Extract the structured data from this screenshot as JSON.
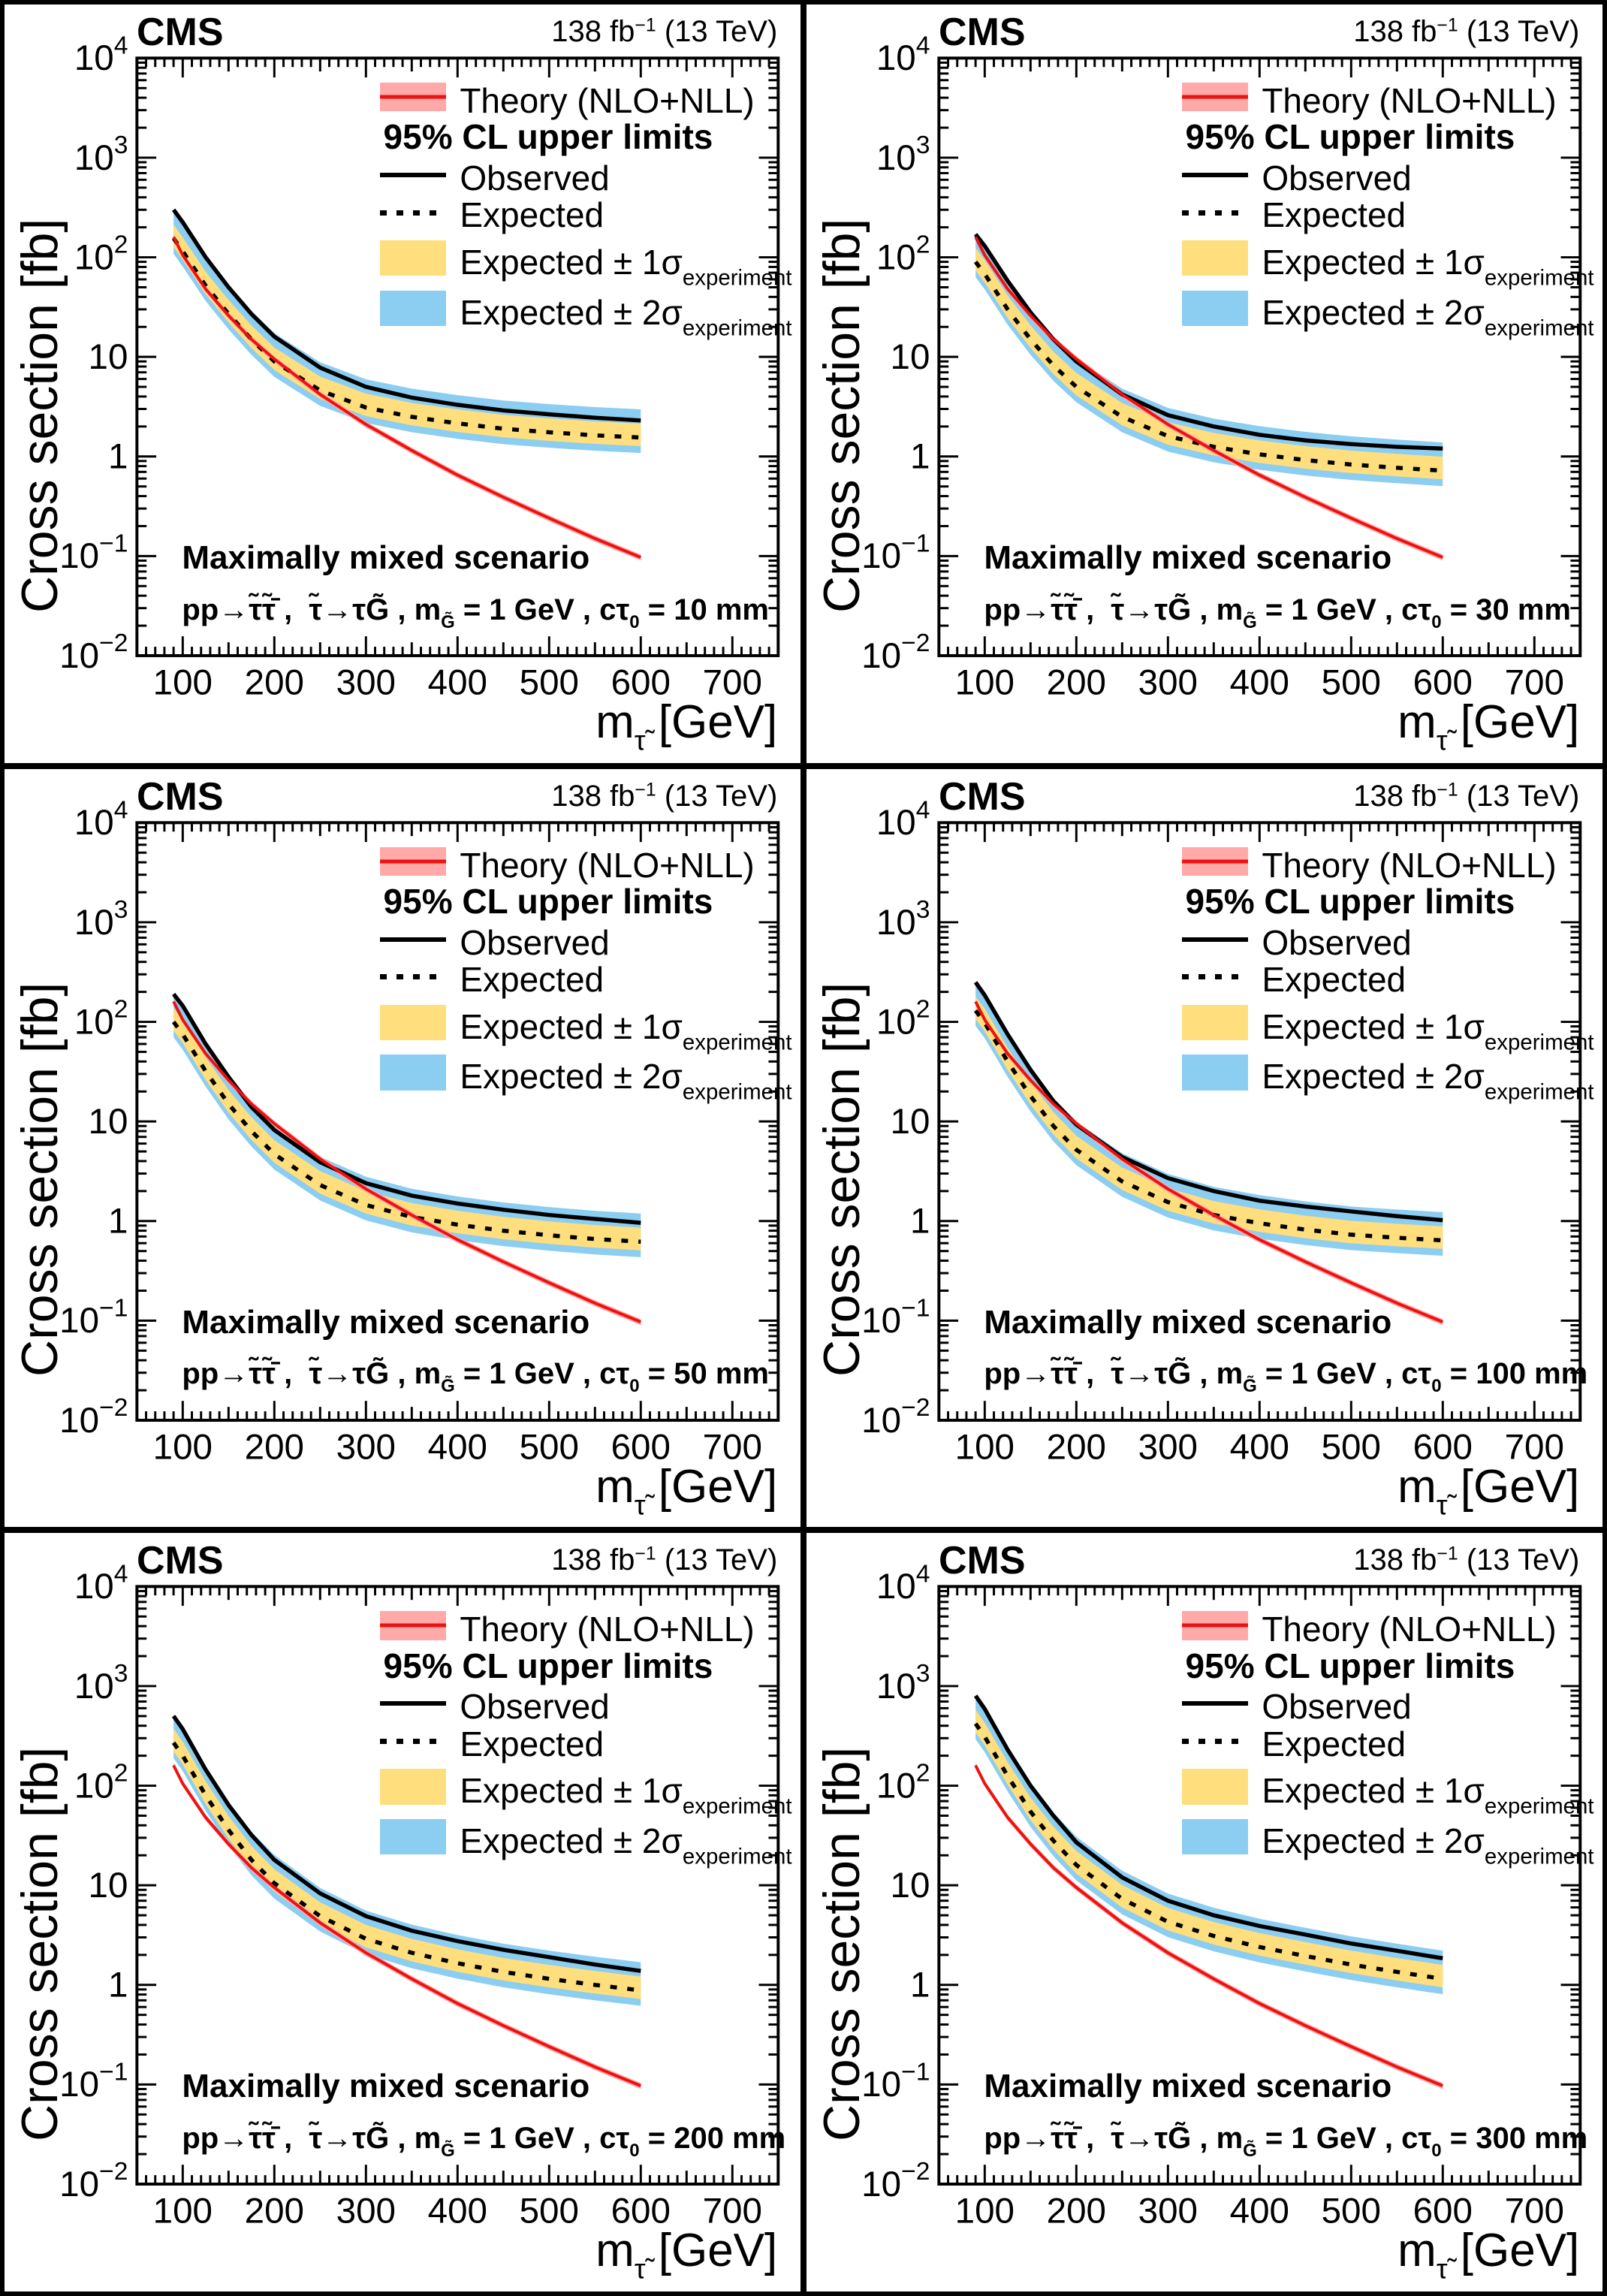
{
  "header": {
    "cms": "CMS",
    "lumi": "138 fb",
    "lumi_sup": "−1",
    "energy": " (13 TeV)"
  },
  "axes": {
    "y_title": "Cross section [fb]",
    "x_title_m": "m",
    "x_title_sub": "τ̃",
    "x_title_unit": " [GeV]",
    "x_ticks": [
      100,
      200,
      300,
      400,
      500,
      600,
      700
    ],
    "x_range": [
      50,
      750
    ],
    "y_decades": [
      -2,
      -1,
      0,
      1,
      2,
      3,
      4
    ]
  },
  "legend": {
    "theory": "Theory (NLO+NLL)",
    "header": "95% CL upper limits",
    "observed": "Observed",
    "expected": "Expected",
    "exp1": "Expected ± 1σ",
    "exp2": "Expected ± 2σ",
    "sigma_sub": "experiment"
  },
  "scenario": {
    "title": "Maximally mixed scenario",
    "prod": "pp→τ̃τ̃̄",
    "sep1": " ,  ",
    "decay": "τ̃→τG̃",
    "sep2": " , m",
    "mg_sub": "G̃",
    "mg_eq": " = 1 GeV , c",
    "ctau_c": "τ",
    "ctau_sub": "0",
    "eq": " = ",
    "unit": " mm"
  },
  "colors": {
    "band_2sigma": "#8CCDF2",
    "band_1sigma": "#FFDE7D",
    "theory_band": "#FFA9A9",
    "theory_line": "#EE1111",
    "black": "#000000"
  },
  "chart_data": [
    {
      "type": "line",
      "ctau_text": "10",
      "x_label": "m_τ̃ [GeV]",
      "y_label": "Cross section [fb]",
      "y_scale": "log",
      "x_range": [
        50,
        750
      ],
      "y_range": [
        0.01,
        10000
      ],
      "x": [
        90,
        100,
        125,
        150,
        175,
        200,
        250,
        300,
        350,
        400,
        450,
        500,
        550,
        600
      ],
      "series": [
        {
          "name": "theory_NLO_NLL",
          "values": [
            160,
            105,
            48,
            26,
            15,
            9.5,
            4.2,
            2.1,
            1.15,
            0.65,
            0.39,
            0.24,
            0.15,
            0.097
          ]
        },
        {
          "name": "observed",
          "values": [
            300,
            225,
            100,
            50,
            27,
            16,
            7.8,
            5.0,
            3.9,
            3.3,
            2.9,
            2.65,
            2.45,
            2.3
          ]
        },
        {
          "name": "expected",
          "values": [
            155,
            115,
            52,
            27,
            15,
            9.0,
            4.6,
            3.1,
            2.5,
            2.15,
            1.9,
            1.75,
            1.63,
            1.55
          ]
        }
      ],
      "band_factors": {
        "one_sigma": [
          0.82,
          1.38
        ],
        "two_sigma": [
          0.7,
          1.92
        ],
        "theory": [
          0.93,
          1.07
        ]
      }
    },
    {
      "type": "line",
      "ctau_text": "30",
      "x_label": "m_τ̃ [GeV]",
      "y_label": "Cross section [fb]",
      "y_scale": "log",
      "x_range": [
        50,
        750
      ],
      "y_range": [
        0.01,
        10000
      ],
      "x": [
        90,
        100,
        125,
        150,
        175,
        200,
        250,
        300,
        350,
        400,
        450,
        500,
        550,
        600
      ],
      "series": [
        {
          "name": "theory_NLO_NLL",
          "values": [
            160,
            105,
            48,
            26,
            15,
            9.5,
            4.2,
            2.1,
            1.15,
            0.65,
            0.39,
            0.24,
            0.15,
            0.097
          ]
        },
        {
          "name": "observed",
          "values": [
            170,
            130,
            58,
            28,
            15,
            9.0,
            4.2,
            2.6,
            2.0,
            1.65,
            1.45,
            1.33,
            1.25,
            1.2
          ]
        },
        {
          "name": "expected",
          "values": [
            90,
            68,
            30,
            15,
            8.2,
            5.0,
            2.5,
            1.6,
            1.25,
            1.05,
            0.92,
            0.83,
            0.77,
            0.72
          ]
        }
      ],
      "band_factors": {
        "one_sigma": [
          0.82,
          1.38
        ],
        "two_sigma": [
          0.7,
          1.92
        ],
        "theory": [
          0.93,
          1.07
        ]
      }
    },
    {
      "type": "line",
      "ctau_text": "50",
      "x_label": "m_τ̃ [GeV]",
      "y_label": "Cross section [fb]",
      "y_scale": "log",
      "x_range": [
        50,
        750
      ],
      "y_range": [
        0.01,
        10000
      ],
      "x": [
        90,
        100,
        125,
        150,
        175,
        200,
        250,
        300,
        350,
        400,
        450,
        500,
        550,
        600
      ],
      "series": [
        {
          "name": "theory_NLO_NLL",
          "values": [
            160,
            105,
            48,
            26,
            15,
            9.5,
            4.2,
            2.1,
            1.15,
            0.65,
            0.39,
            0.24,
            0.15,
            0.097
          ]
        },
        {
          "name": "observed",
          "values": [
            190,
            145,
            60,
            28,
            14,
            8.2,
            3.9,
            2.4,
            1.8,
            1.5,
            1.3,
            1.15,
            1.05,
            0.96
          ]
        },
        {
          "name": "expected",
          "values": [
            100,
            75,
            32,
            15,
            8.0,
            4.7,
            2.3,
            1.45,
            1.1,
            0.92,
            0.8,
            0.72,
            0.66,
            0.62
          ]
        }
      ],
      "band_factors": {
        "one_sigma": [
          0.82,
          1.38
        ],
        "two_sigma": [
          0.7,
          1.92
        ],
        "theory": [
          0.93,
          1.07
        ]
      }
    },
    {
      "type": "line",
      "ctau_text": "100",
      "x_label": "m_τ̃ [GeV]",
      "y_label": "Cross section [fb]",
      "y_scale": "log",
      "x_range": [
        50,
        750
      ],
      "y_range": [
        0.01,
        10000
      ],
      "x": [
        90,
        100,
        125,
        150,
        175,
        200,
        250,
        300,
        350,
        400,
        450,
        500,
        550,
        600
      ],
      "series": [
        {
          "name": "theory_NLO_NLL",
          "values": [
            160,
            105,
            48,
            26,
            15,
            9.5,
            4.2,
            2.1,
            1.15,
            0.65,
            0.39,
            0.24,
            0.15,
            0.097
          ]
        },
        {
          "name": "observed",
          "values": [
            250,
            185,
            75,
            33,
            16,
            9.3,
            4.4,
            2.7,
            2.0,
            1.6,
            1.4,
            1.25,
            1.12,
            1.02
          ]
        },
        {
          "name": "expected",
          "values": [
            130,
            98,
            40,
            18,
            9.0,
            5.2,
            2.5,
            1.55,
            1.15,
            0.95,
            0.82,
            0.73,
            0.68,
            0.64
          ]
        }
      ],
      "band_factors": {
        "one_sigma": [
          0.82,
          1.38
        ],
        "two_sigma": [
          0.7,
          1.92
        ],
        "theory": [
          0.93,
          1.07
        ]
      }
    },
    {
      "type": "line",
      "ctau_text": "200",
      "x_label": "m_τ̃ [GeV]",
      "y_label": "Cross section [fb]",
      "y_scale": "log",
      "x_range": [
        50,
        750
      ],
      "y_range": [
        0.01,
        10000
      ],
      "x": [
        90,
        100,
        125,
        150,
        175,
        200,
        250,
        300,
        350,
        400,
        450,
        500,
        550,
        600
      ],
      "series": [
        {
          "name": "theory_NLO_NLL",
          "values": [
            160,
            105,
            48,
            26,
            15,
            9.5,
            4.2,
            2.1,
            1.15,
            0.65,
            0.39,
            0.24,
            0.15,
            0.097
          ]
        },
        {
          "name": "observed",
          "values": [
            500,
            370,
            145,
            64,
            32,
            18,
            8.3,
            4.9,
            3.5,
            2.75,
            2.25,
            1.9,
            1.6,
            1.38
          ]
        },
        {
          "name": "expected",
          "values": [
            270,
            200,
            80,
            36,
            18,
            10.5,
            4.9,
            2.9,
            2.1,
            1.65,
            1.35,
            1.15,
            1.0,
            0.88
          ]
        }
      ],
      "band_factors": {
        "one_sigma": [
          0.82,
          1.38
        ],
        "two_sigma": [
          0.7,
          1.92
        ],
        "theory": [
          0.93,
          1.07
        ]
      }
    },
    {
      "type": "line",
      "ctau_text": "300",
      "x_label": "m_τ̃ [GeV]",
      "y_label": "Cross section [fb]",
      "y_scale": "log",
      "x_range": [
        50,
        750
      ],
      "y_range": [
        0.01,
        10000
      ],
      "x": [
        90,
        100,
        125,
        150,
        175,
        200,
        250,
        300,
        350,
        400,
        450,
        500,
        550,
        600
      ],
      "series": [
        {
          "name": "theory_NLO_NLL",
          "values": [
            160,
            105,
            48,
            26,
            15,
            9.5,
            4.2,
            2.1,
            1.15,
            0.65,
            0.39,
            0.24,
            0.15,
            0.097
          ]
        },
        {
          "name": "observed",
          "values": [
            800,
            590,
            230,
            100,
            50,
            27,
            12,
            7.0,
            5.0,
            3.9,
            3.2,
            2.6,
            2.2,
            1.85
          ]
        },
        {
          "name": "expected",
          "values": [
            420,
            310,
            125,
            55,
            28,
            16,
            7.3,
            4.3,
            3.1,
            2.4,
            1.95,
            1.6,
            1.35,
            1.15
          ]
        }
      ],
      "band_factors": {
        "one_sigma": [
          0.82,
          1.38
        ],
        "two_sigma": [
          0.7,
          1.92
        ],
        "theory": [
          0.93,
          1.07
        ]
      }
    }
  ]
}
